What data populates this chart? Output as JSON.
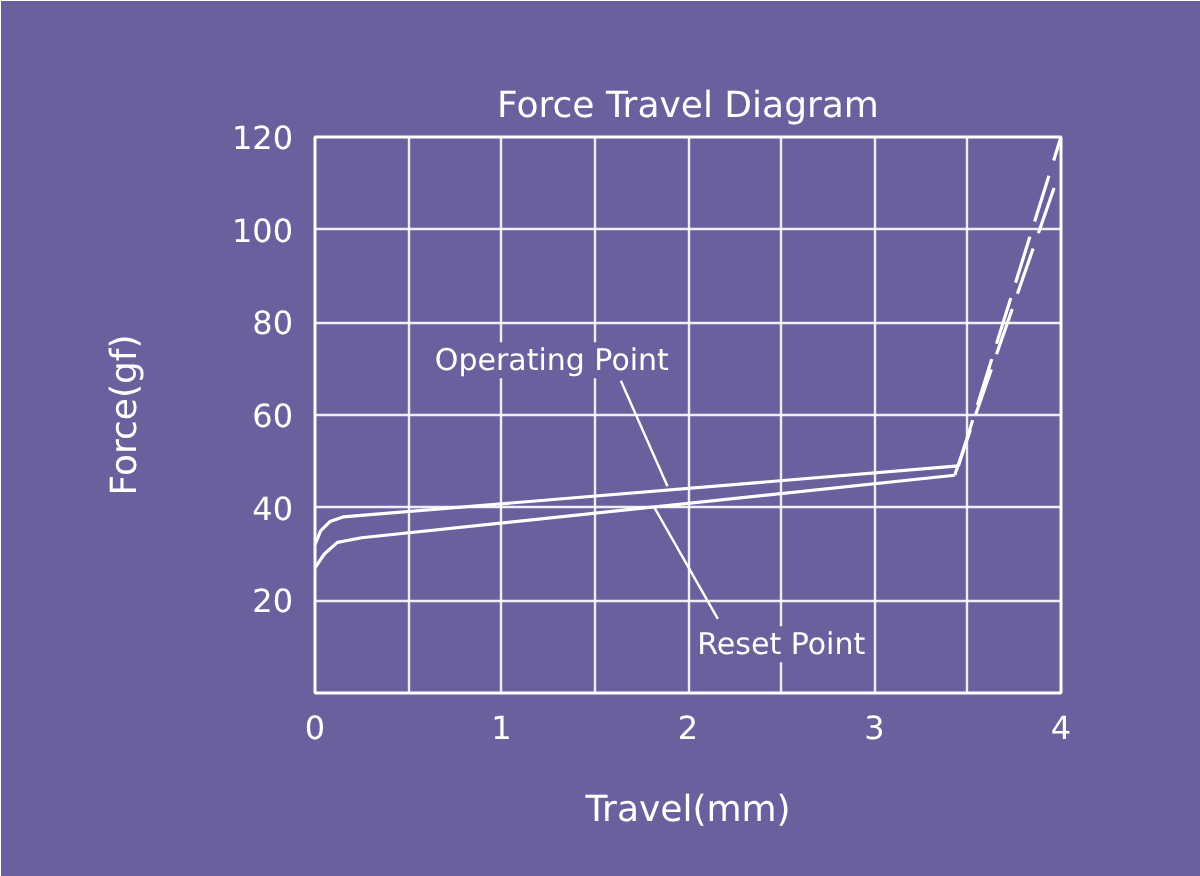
{
  "chart_data": {
    "type": "line",
    "title": "Force Travel Diagram",
    "xlabel": "Travel(mm)",
    "ylabel": "Force(gf)",
    "xlim": [
      0,
      4
    ],
    "ylim": [
      0,
      120
    ],
    "xticks": [
      0,
      {
        "value": 0.5,
        "label": null
      },
      1,
      {
        "value": 1.5,
        "label": null
      },
      2,
      {
        "value": 2.5,
        "label": null
      },
      3,
      {
        "value": 3.5,
        "label": null
      },
      4
    ],
    "yticks": [
      {
        "value": 0,
        "label": null
      },
      20,
      40,
      60,
      80,
      100,
      120
    ],
    "grid": true,
    "marker": "none",
    "series": [
      {
        "color": "#ffffff",
        "line_style": "solid",
        "x": [
          0,
          0.03,
          0.08,
          0.15,
          3.45
        ],
        "values": [
          32,
          35,
          37,
          38,
          49
        ]
      },
      {
        "color": "#ffffff",
        "line_style": "solid",
        "x": [
          0,
          0.05,
          0.12,
          0.25,
          3.43
        ],
        "values": [
          27,
          30,
          32.5,
          33.5,
          47
        ]
      },
      {
        "color": "#ffffff",
        "line_style": "dashed",
        "x": [
          3.45,
          4
        ],
        "values": [
          49,
          120
        ]
      },
      {
        "color": "#ffffff",
        "line_style": "dashed",
        "x": [
          3.43,
          3.98
        ],
        "values": [
          47,
          111
        ]
      }
    ],
    "annotations": [
      {
        "text": "Operating Point",
        "x": 1.89,
        "y": 44.6
      },
      {
        "text": "Reset Point",
        "x": 1.82,
        "y": 40
      }
    ]
  }
}
